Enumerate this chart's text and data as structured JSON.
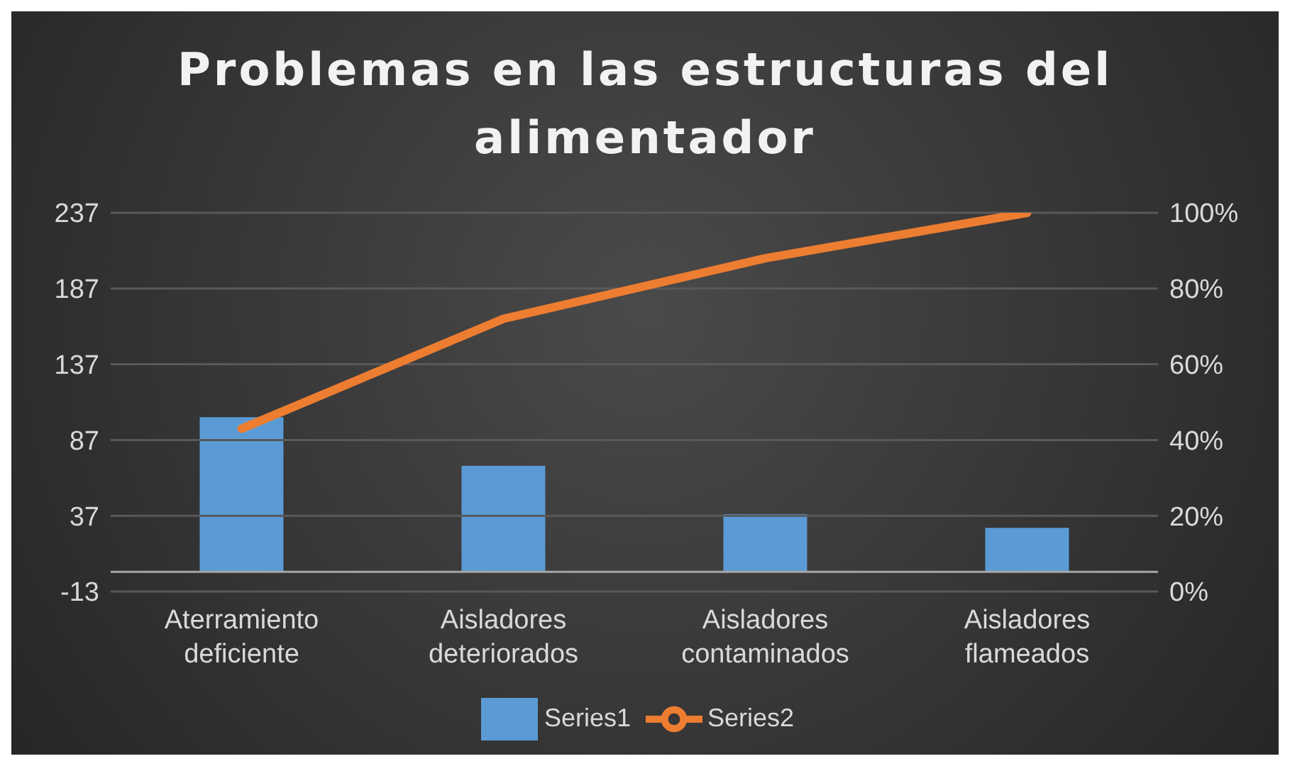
{
  "chart_data": {
    "type": "bar",
    "title": "Problemas en las estructuras del alimentador",
    "categories": [
      "Aterramiento deficiente",
      "Aisladores deteriorados",
      "Aisladores contaminados",
      "Aisladores flameados"
    ],
    "series": [
      {
        "name": "Series1",
        "color": "#5b9bd5",
        "values": [
          102,
          70,
          38,
          29
        ]
      },
      {
        "name": "Series2",
        "type": "line",
        "axis": "y2",
        "color": "#ed7d31",
        "values": [
          43,
          72,
          88,
          100
        ]
      }
    ],
    "ylim": [
      -13,
      237
    ],
    "yticks": [
      -13,
      37,
      87,
      137,
      187,
      237
    ],
    "y2lim": [
      0,
      100
    ],
    "y2ticks": [
      {
        "value": 0,
        "label": "0%"
      },
      {
        "value": 20,
        "label": "20%"
      },
      {
        "value": 40,
        "label": "40%"
      },
      {
        "value": 60,
        "label": "60%"
      },
      {
        "value": 80,
        "label": "80%"
      },
      {
        "value": 100,
        "label": "100%"
      }
    ],
    "grid": "y",
    "legend": "bottom",
    "marker": "none"
  }
}
